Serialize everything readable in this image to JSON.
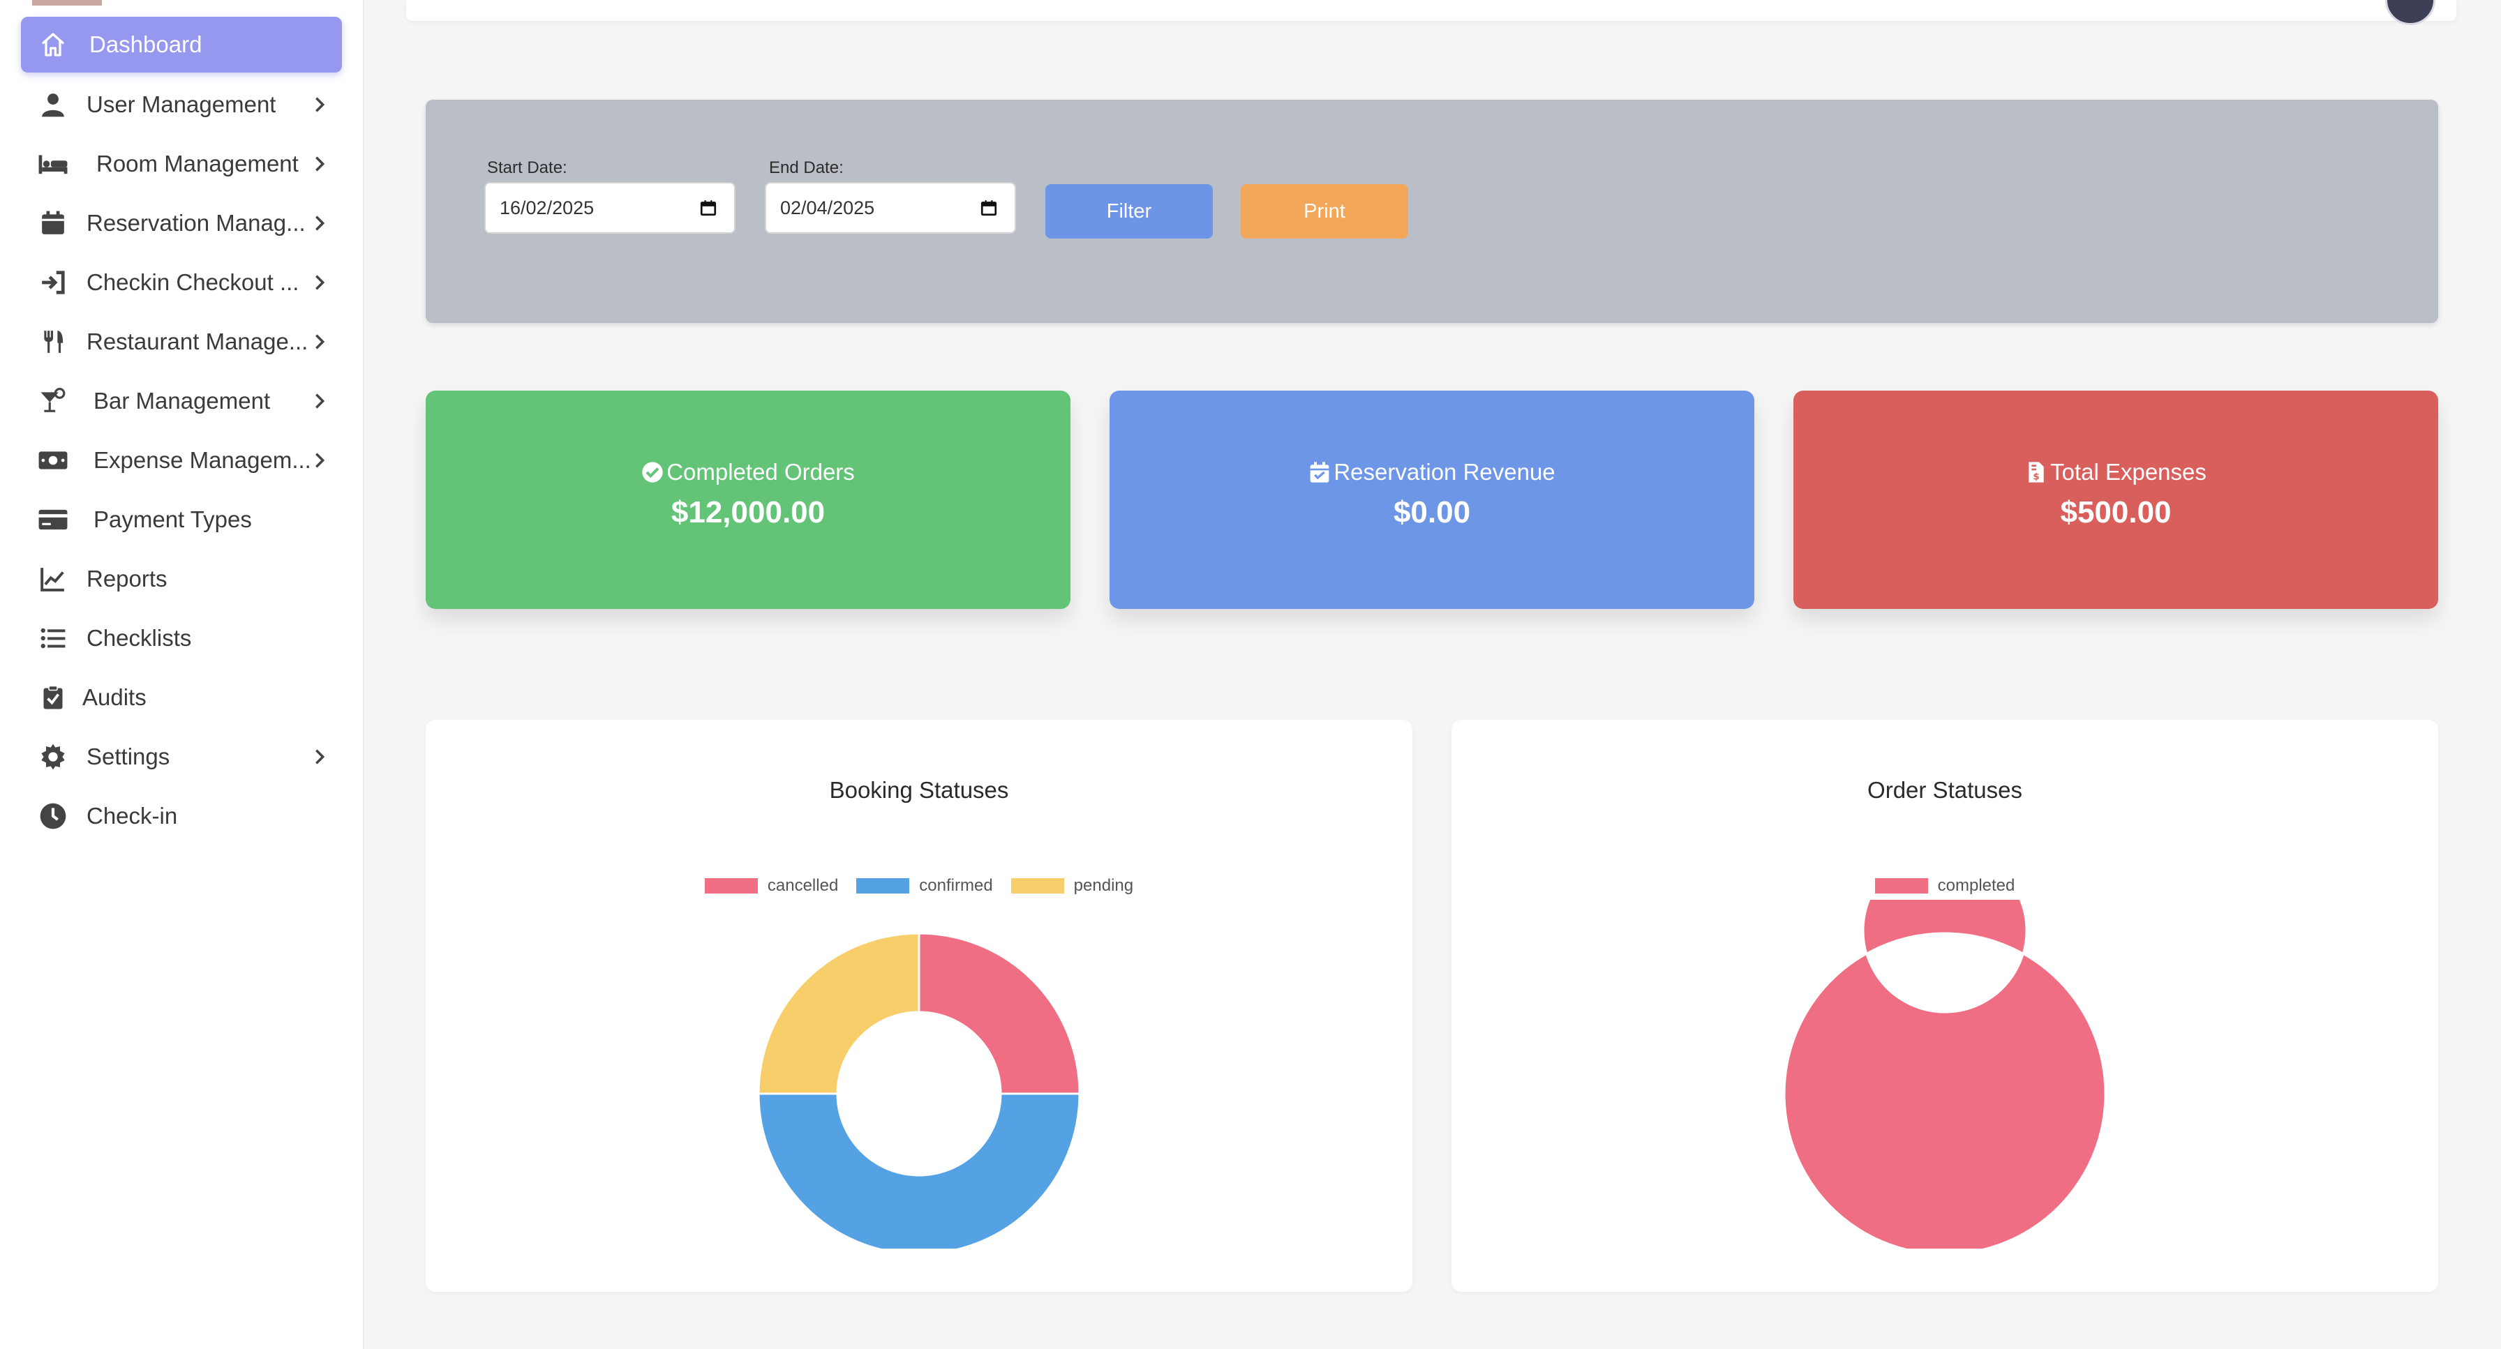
{
  "sidebar": {
    "items": [
      {
        "label": "Dashboard",
        "icon": "home-icon",
        "active": true
      },
      {
        "label": "User Management",
        "icon": "user-icon",
        "has_children": true
      },
      {
        "label": "Room Management",
        "icon": "bed-icon",
        "has_children": true
      },
      {
        "label": "Reservation Manag...",
        "icon": "calendar-icon",
        "has_children": true
      },
      {
        "label": "Checkin Checkout ...",
        "icon": "sign-in-icon",
        "has_children": true
      },
      {
        "label": "Restaurant Manage...",
        "icon": "utensils-icon",
        "has_children": true
      },
      {
        "label": "Bar Management",
        "icon": "cocktail-icon",
        "has_children": true
      },
      {
        "label": "Expense Managem...",
        "icon": "money-bill-icon",
        "has_children": true
      },
      {
        "label": "Payment Types",
        "icon": "credit-card-icon"
      },
      {
        "label": "Reports",
        "icon": "line-chart-icon"
      },
      {
        "label": "Checklists",
        "icon": "list-icon"
      },
      {
        "label": "Audits",
        "icon": "clipboard-check-icon"
      },
      {
        "label": "Settings",
        "icon": "gear-icon",
        "has_children": true
      },
      {
        "label": "Check-in",
        "icon": "clock-icon"
      }
    ]
  },
  "filters": {
    "start_label": "Start Date:",
    "start_value": "16/02/2025",
    "end_label": "End Date:",
    "end_value": "02/04/2025",
    "filter_button": "Filter",
    "print_button": "Print"
  },
  "stats": [
    {
      "title": "Completed Orders",
      "value": "$12,000.00",
      "icon": "check-circle-icon",
      "color": "#63c376"
    },
    {
      "title": "Reservation Revenue",
      "value": "$0.00",
      "icon": "calendar-check-icon",
      "color": "#6d96e6"
    },
    {
      "title": "Total Expenses",
      "value": "$500.00",
      "icon": "file-invoice-dollar-icon",
      "color": "#d95f5c"
    }
  ],
  "chart_data": [
    {
      "type": "pie",
      "title": "Booking Statuses",
      "categories": [
        "cancelled",
        "confirmed",
        "pending"
      ],
      "values": [
        1,
        2,
        1
      ],
      "colors": [
        "#ef6e84",
        "#54a2e4",
        "#f8ce6a"
      ],
      "legend": "top"
    },
    {
      "type": "pie",
      "title": "Order Statuses",
      "categories": [
        "completed"
      ],
      "values": [
        1
      ],
      "colors": [
        "#ef6e84"
      ],
      "legend": "top"
    }
  ]
}
